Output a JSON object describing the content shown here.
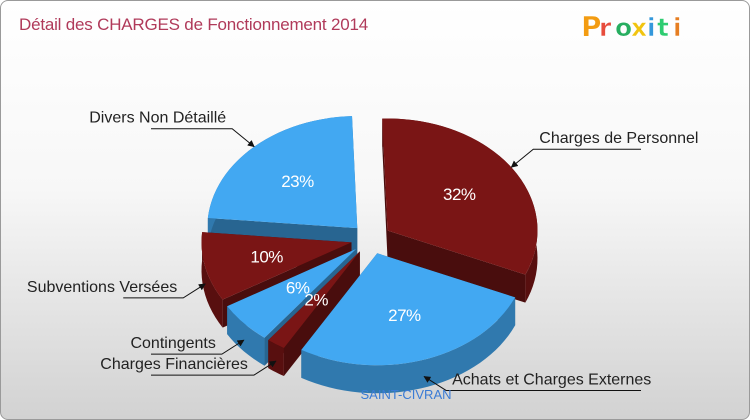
{
  "header": {
    "title": "Détail des CHARGES de Fonctionnement 2014"
  },
  "brand": {
    "logo_text": "Proxiti",
    "logo_letters": [
      "P",
      "r",
      "o",
      "x",
      "i",
      "t",
      "i"
    ],
    "logo_colors": [
      "#f39c12",
      "#e74c3c",
      "#27ae60",
      "#f1c40f",
      "#3498db",
      "#2ecc71",
      "#e67e22"
    ]
  },
  "chart_data": {
    "type": "pie",
    "title": "Détail des CHARGES de Fonctionnement 2014",
    "subtitle": "SAINT-CIVRAN",
    "style": "3d-exploded",
    "slices": [
      {
        "name": "Charges de Personnel",
        "value": 32,
        "label": "32%",
        "color": "#7a1515"
      },
      {
        "name": "Achats et Charges Externes",
        "value": 27,
        "label": "27%",
        "color": "#42a8f2"
      },
      {
        "name": "Charges Financières",
        "value": 2,
        "label": "2%",
        "color": "#7a1515"
      },
      {
        "name": "Contingents",
        "value": 6,
        "label": "6%",
        "color": "#42a8f2"
      },
      {
        "name": "Subventions Versées",
        "value": 10,
        "label": "10%",
        "color": "#7a1515"
      },
      {
        "name": "Divers Non Détaillé",
        "value": 23,
        "label": "23%",
        "color": "#42a8f2"
      }
    ]
  },
  "colors": {
    "title": "#b03a5a",
    "blue": "#42a8f2",
    "blue_dark": "#2f86c9",
    "maroon": "#7a1515",
    "maroon_dark": "#5a0c0c"
  }
}
